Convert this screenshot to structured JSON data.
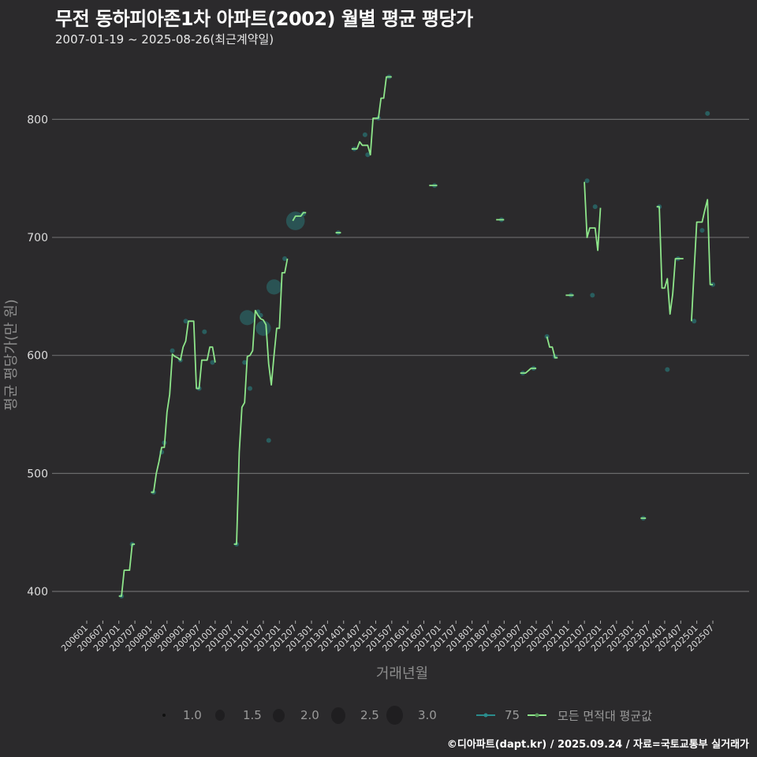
{
  "header": {
    "title": "무전 동하피아존1차 아파트(2002) 월별 평균 평당가",
    "subtitle": "2007-01-19 ~ 2025-08-26(최근계약일)"
  },
  "footer": {
    "credit": "©디아파트(dapt.kr) / 2025.09.24 / 자료=국토교통부 실거래가"
  },
  "legend": {
    "size_items": [
      {
        "label": "1.0",
        "size": 4
      },
      {
        "label": "1.5",
        "size": 12
      },
      {
        "label": "2.0",
        "size": 16
      },
      {
        "label": "2.5",
        "size": 20
      },
      {
        "label": "3.0",
        "size": 24
      }
    ],
    "series_items": [
      {
        "label": "75",
        "color": "#2a8c8c"
      },
      {
        "label": "모든 면적대 평균값",
        "color": "#8ee68a"
      }
    ]
  },
  "colors": {
    "background": "#2b2a2c",
    "grid": "#6b6b6b",
    "line": "#8ee68a",
    "point": "#2a7070"
  },
  "chart_data": {
    "type": "line",
    "title": "무전 동하피아존1차 아파트(2002) 월별 평균 평당가",
    "subtitle": "2007-01-19 ~ 2025-08-26(최근계약일)",
    "xlabel": "거래년월",
    "ylabel": "평균 평당가(만 원)",
    "ylim": [
      375,
      845
    ],
    "yticks": [
      400,
      500,
      600,
      700,
      800
    ],
    "xticks": [
      "200601",
      "200607",
      "200701",
      "200707",
      "200801",
      "200807",
      "200901",
      "200907",
      "201001",
      "201007",
      "201101",
      "201107",
      "201201",
      "201207",
      "201301",
      "201307",
      "201401",
      "201407",
      "201501",
      "201507",
      "201601",
      "201607",
      "201701",
      "201707",
      "201801",
      "201807",
      "201901",
      "201907",
      "202001",
      "202007",
      "202101",
      "202107",
      "202201",
      "202207",
      "202301",
      "202307",
      "202401",
      "202407",
      "202501",
      "202507"
    ],
    "grid": "horizontal",
    "legend_position": "bottom",
    "series": [
      {
        "name": "모든 면적대 평균값",
        "segments": [
          [
            [
              "200701",
              396
            ],
            [
              "200702",
              396
            ],
            [
              "200703",
              418
            ],
            [
              "200704",
              418
            ],
            [
              "200705",
              418
            ],
            [
              "200706",
              440
            ],
            [
              "200707",
              440
            ]
          ],
          [
            [
              "200801",
              484
            ],
            [
              "200802",
              484
            ],
            [
              "200803",
              500
            ],
            [
              "200804",
              510
            ],
            [
              "200805",
              522
            ],
            [
              "200806",
              522
            ],
            [
              "200807",
              552
            ],
            [
              "200808",
              567
            ],
            [
              "200809",
              601
            ],
            [
              "200810",
              599
            ],
            [
              "200811",
              598
            ],
            [
              "200812",
              596
            ],
            [
              "200901",
              607
            ],
            [
              "200902",
              612
            ],
            [
              "200903",
              629
            ],
            [
              "200904",
              629
            ],
            [
              "200905",
              629
            ],
            [
              "200906",
              572
            ],
            [
              "200907",
              572
            ],
            [
              "200908",
              596
            ],
            [
              "200909",
              596
            ],
            [
              "200910",
              596
            ],
            [
              "200911",
              607
            ],
            [
              "200912",
              607
            ],
            [
              "201001",
              594
            ]
          ],
          [
            [
              "201008",
              440
            ],
            [
              "201009",
              440
            ],
            [
              "201010",
              518
            ],
            [
              "201011",
              556
            ],
            [
              "201012",
              560
            ],
            [
              "201101",
              599
            ],
            [
              "201102",
              600
            ],
            [
              "201103",
              604
            ],
            [
              "201104",
              638
            ],
            [
              "201105",
              634
            ],
            [
              "201106",
              631
            ],
            [
              "201107",
              630
            ],
            [
              "201108",
              626
            ],
            [
              "201109",
              593
            ],
            [
              "201110",
              575
            ],
            [
              "201111",
              600
            ],
            [
              "201112",
              623
            ],
            [
              "201201",
              623
            ],
            [
              "201202",
              670
            ],
            [
              "201203",
              670
            ],
            [
              "201204",
              682
            ]
          ],
          [
            [
              "201206",
              714
            ],
            [
              "201207",
              718
            ],
            [
              "201208",
              718
            ],
            [
              "201209",
              718
            ],
            [
              "201210",
              721
            ],
            [
              "201211",
              721
            ]
          ],
          [
            [
              "201310",
              704
            ],
            [
              "201311",
              704
            ],
            [
              "201312",
              704
            ]
          ],
          [
            [
              "201404",
              775
            ],
            [
              "201405",
              775
            ],
            [
              "201406",
              775
            ],
            [
              "201407",
              781
            ],
            [
              "201408",
              778
            ],
            [
              "201409",
              778
            ],
            [
              "201410",
              778
            ],
            [
              "201411",
              770
            ],
            [
              "201412",
              801
            ],
            [
              "201501",
              801
            ],
            [
              "201502",
              801
            ],
            [
              "201503",
              818
            ],
            [
              "201504",
              818
            ],
            [
              "201505",
              836
            ],
            [
              "201506",
              836
            ],
            [
              "201507",
              836
            ]
          ],
          [
            [
              "201609",
              744
            ],
            [
              "201610",
              744
            ],
            [
              "201611",
              744
            ],
            [
              "201612",
              744
            ]
          ],
          [
            [
              "201810",
              715
            ],
            [
              "201811",
              715
            ],
            [
              "201812",
              715
            ],
            [
              "201901",
              715
            ]
          ],
          [
            [
              "201907",
              585
            ],
            [
              "201908",
              585
            ],
            [
              "201909",
              585
            ],
            [
              "201910",
              587
            ],
            [
              "201911",
              589
            ],
            [
              "201912",
              589
            ],
            [
              "202001",
              589
            ]
          ],
          [
            [
              "202005",
              616
            ],
            [
              "202006",
              607
            ],
            [
              "202007",
              607
            ],
            [
              "202008",
              598
            ],
            [
              "202009",
              598
            ]
          ],
          [
            [
              "202012",
              651
            ],
            [
              "202101",
              651
            ],
            [
              "202102",
              651
            ],
            [
              "202103",
              651
            ]
          ],
          [
            [
              "202107",
              747
            ],
            [
              "202108",
              700
            ],
            [
              "202109",
              708
            ],
            [
              "202110",
              708
            ],
            [
              "202111",
              708
            ],
            [
              "202112",
              689
            ],
            [
              "202201",
              725
            ]
          ],
          [
            [
              "202310",
              726
            ],
            [
              "202311",
              726
            ],
            [
              "202312",
              657
            ],
            [
              "202401",
              657
            ],
            [
              "202402",
              665
            ],
            [
              "202403",
              635
            ],
            [
              "202404",
              652
            ],
            [
              "202405",
              682
            ],
            [
              "202406",
              682
            ],
            [
              "202407",
              682
            ],
            [
              "202408",
              682
            ]
          ],
          [
            [
              "202411",
              629
            ],
            [
              "202412",
              671
            ],
            [
              "202501",
              713
            ],
            [
              "202502",
              713
            ],
            [
              "202503",
              713
            ],
            [
              "202504",
              723
            ],
            [
              "202505",
              732
            ],
            [
              "202506",
              660
            ],
            [
              "202507",
              660
            ]
          ]
        ],
        "extra_segments_note": "",
        "isolated": [
          [
            "202304",
            462
          ],
          [
            "202305",
            462
          ],
          [
            "202306",
            462
          ]
        ]
      },
      {
        "name": "75",
        "points": [
          {
            "x": "200702",
            "y": 396,
            "size": 1
          },
          {
            "x": "200706",
            "y": 440,
            "size": 1
          },
          {
            "x": "200802",
            "y": 484,
            "size": 1
          },
          {
            "x": "200805",
            "y": 518,
            "size": 1
          },
          {
            "x": "200806",
            "y": 526,
            "size": 1
          },
          {
            "x": "200809",
            "y": 604,
            "size": 1
          },
          {
            "x": "200812",
            "y": 596,
            "size": 1
          },
          {
            "x": "200902",
            "y": 629,
            "size": 1
          },
          {
            "x": "200907",
            "y": 572,
            "size": 1
          },
          {
            "x": "200909",
            "y": 620,
            "size": 1
          },
          {
            "x": "200912",
            "y": 594,
            "size": 1
          },
          {
            "x": "201009",
            "y": 440,
            "size": 1
          },
          {
            "x": "201012",
            "y": 594,
            "size": 1
          },
          {
            "x": "201101",
            "y": 632,
            "size": 2.2
          },
          {
            "x": "201102",
            "y": 572,
            "size": 1
          },
          {
            "x": "201105",
            "y": 637,
            "size": 1
          },
          {
            "x": "201106",
            "y": 634,
            "size": 1
          },
          {
            "x": "201107",
            "y": 623,
            "size": 2.2
          },
          {
            "x": "201109",
            "y": 528,
            "size": 1
          },
          {
            "x": "201111",
            "y": 658,
            "size": 2.2
          },
          {
            "x": "201203",
            "y": 682,
            "size": 1
          },
          {
            "x": "201207",
            "y": 714,
            "size": 2.6
          },
          {
            "x": "201210",
            "y": 720,
            "size": 1
          },
          {
            "x": "201311",
            "y": 704,
            "size": 1
          },
          {
            "x": "201405",
            "y": 775,
            "size": 1
          },
          {
            "x": "201409",
            "y": 787,
            "size": 1
          },
          {
            "x": "201410",
            "y": 770,
            "size": 1
          },
          {
            "x": "201502",
            "y": 801,
            "size": 1
          },
          {
            "x": "201506",
            "y": 836,
            "size": 1
          },
          {
            "x": "201611",
            "y": 744,
            "size": 1
          },
          {
            "x": "201812",
            "y": 715,
            "size": 1
          },
          {
            "x": "201908",
            "y": 585,
            "size": 1
          },
          {
            "x": "201912",
            "y": 589,
            "size": 1
          },
          {
            "x": "202005",
            "y": 616,
            "size": 1
          },
          {
            "x": "202008",
            "y": 599,
            "size": 1
          },
          {
            "x": "202102",
            "y": 651,
            "size": 1
          },
          {
            "x": "202108",
            "y": 748,
            "size": 1
          },
          {
            "x": "202110",
            "y": 651,
            "size": 1
          },
          {
            "x": "202111",
            "y": 726,
            "size": 1
          },
          {
            "x": "202305",
            "y": 462,
            "size": 1
          },
          {
            "x": "202311",
            "y": 726,
            "size": 1
          },
          {
            "x": "202402",
            "y": 588,
            "size": 1
          },
          {
            "x": "202406",
            "y": 682,
            "size": 1
          },
          {
            "x": "202412",
            "y": 629,
            "size": 1
          },
          {
            "x": "202503",
            "y": 706,
            "size": 1
          },
          {
            "x": "202505",
            "y": 805,
            "size": 1
          },
          {
            "x": "202507",
            "y": 660,
            "size": 1
          }
        ]
      }
    ]
  }
}
